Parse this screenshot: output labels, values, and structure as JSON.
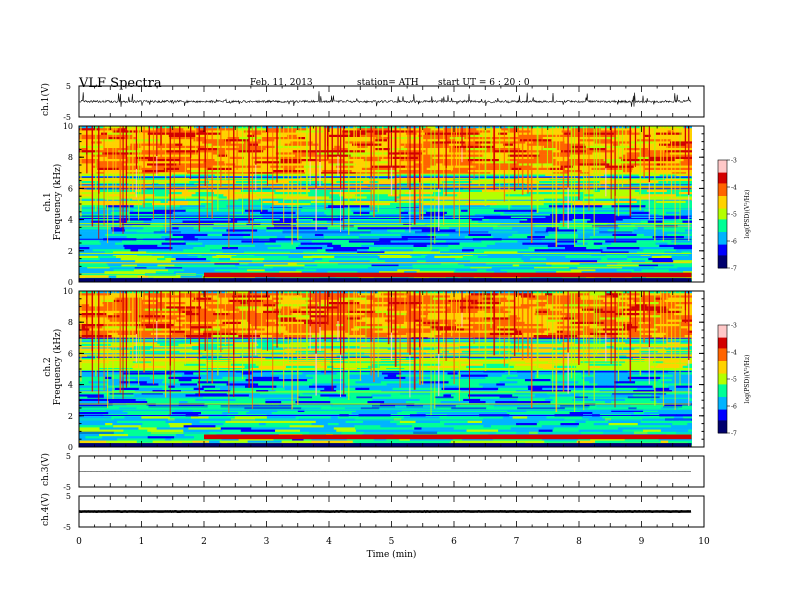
{
  "header": {
    "title": "VLF  Spectra",
    "date": "Feb. 11, 2013",
    "station": "station= ATH",
    "start": "start  UT  =   6  : 20 : 0"
  },
  "chart_data": [
    {
      "type": "line",
      "panel": "ch1-waveform",
      "ylabel": "ch.1(V)",
      "yticks": [
        "5",
        "-5"
      ],
      "ylim": [
        -5,
        5
      ],
      "xlim": [
        0,
        10
      ],
      "x_end": 9.8,
      "note_values": "noisy waveform centered near 0 V with spikes up to about +2.5 V and down to about -2 V"
    },
    {
      "type": "heatmap",
      "panel": "ch1-spectrogram",
      "ylabel": "ch.1\nFrequency  (kHz)",
      "ylim": [
        0,
        10
      ],
      "yticks": [
        "0",
        "2",
        "4",
        "6",
        "8",
        "10"
      ],
      "xlim": [
        0,
        10
      ],
      "x_end": 9.8,
      "colorbar": {
        "label": "log(PSD)(V²/Hz)",
        "ticks": [
          "-3",
          "-4",
          "-5",
          "-6",
          "-7"
        ],
        "range": [
          -7,
          -3
        ]
      },
      "bands": [
        {
          "f_from": 7,
          "f_to": 10,
          "level": -4.3
        },
        {
          "f_from": 5,
          "f_to": 7,
          "level": -5.0
        },
        {
          "f_from": 2,
          "f_to": 5,
          "level": -5.8
        },
        {
          "f_from": 0.5,
          "f_to": 2,
          "level": -5.6
        },
        {
          "f_from": 0,
          "f_to": 0.5,
          "level": -5.2
        }
      ],
      "strong_band": {
        "f_from": 0.3,
        "f_to": 0.6,
        "t_from": 2.0,
        "t_to": 9.8,
        "level": -3.5
      }
    },
    {
      "type": "heatmap",
      "panel": "ch2-spectrogram",
      "ylabel": "ch.2\nFrequency  (kHz)",
      "ylim": [
        0,
        10
      ],
      "yticks": [
        "0",
        "2",
        "4",
        "6",
        "8",
        "10"
      ],
      "xlim": [
        0,
        10
      ],
      "x_end": 9.8,
      "colorbar": {
        "label": "log(PSD)(V²/Hz)",
        "ticks": [
          "-3",
          "-4",
          "-5",
          "-6",
          "-7"
        ],
        "range": [
          -7,
          -3
        ]
      },
      "bands": [
        {
          "f_from": 7,
          "f_to": 10,
          "level": -4.3
        },
        {
          "f_from": 5,
          "f_to": 7,
          "level": -5.0
        },
        {
          "f_from": 2,
          "f_to": 5,
          "level": -5.8
        },
        {
          "f_from": 0.5,
          "f_to": 2,
          "level": -5.6
        },
        {
          "f_from": 0,
          "f_to": 0.5,
          "level": -5.2
        }
      ],
      "strong_band": {
        "f_from": 0.5,
        "f_to": 0.8,
        "t_from": 2.0,
        "t_to": 9.8,
        "level": -3.5
      }
    },
    {
      "type": "line",
      "panel": "ch3-waveform",
      "ylabel": "ch.3(V)",
      "yticks": [
        "5",
        "-5"
      ],
      "ylim": [
        -5,
        5
      ],
      "xlim": [
        0,
        10
      ],
      "x_end": 9.8,
      "note_values": "flat trace near 0 V"
    },
    {
      "type": "line",
      "panel": "ch4-waveform",
      "ylabel": "ch.4(V)",
      "yticks": [
        "5",
        "-5"
      ],
      "ylim": [
        -5,
        5
      ],
      "xlim": [
        0,
        10
      ],
      "x_end": 9.8,
      "note_values": "thick flat trace near 0 V"
    }
  ],
  "xaxis": {
    "label": "Time  (min)",
    "ticks": [
      "0",
      "1",
      "2",
      "3",
      "4",
      "5",
      "6",
      "7",
      "8",
      "9",
      "10"
    ]
  },
  "colormap": [
    "#00006e",
    "#0000ff",
    "#00b4ff",
    "#00ff96",
    "#b4ff00",
    "#ffd200",
    "#ff6400",
    "#d20000",
    "#ffc8c8"
  ]
}
